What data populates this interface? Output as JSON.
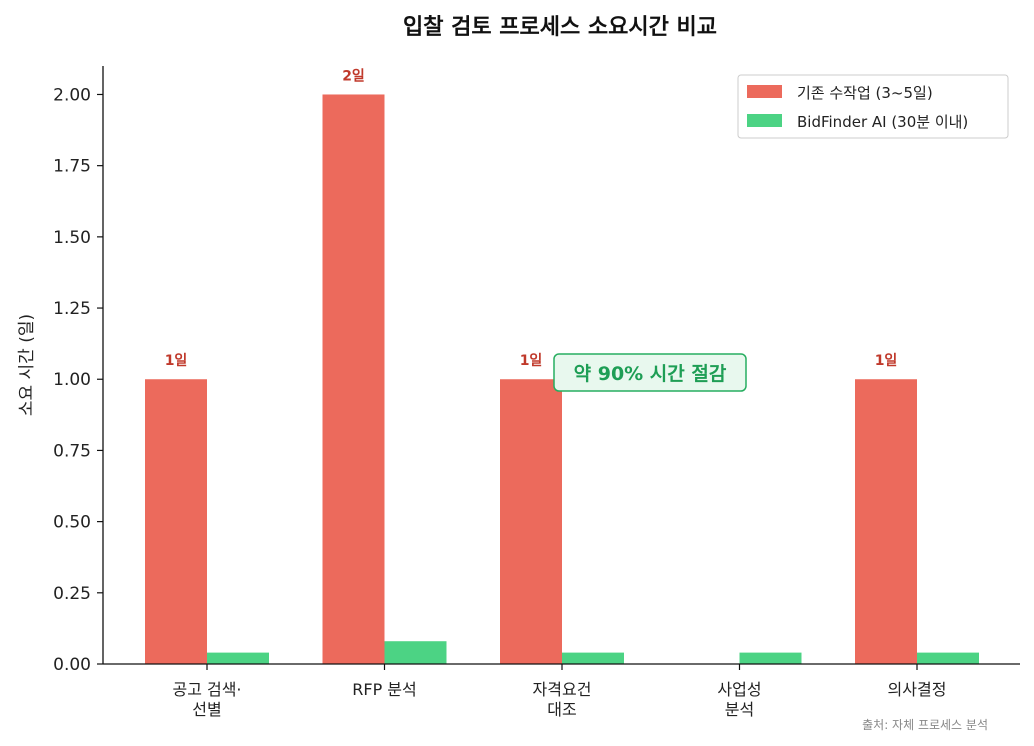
{
  "chart_data": {
    "type": "bar",
    "title": "입찰 검토 프로세스 소요시간 비교",
    "ylabel": "소요 시간 (일)",
    "xlabel": "",
    "ylim": [
      0,
      2.1
    ],
    "yticks": [
      "0.00",
      "0.25",
      "0.50",
      "0.75",
      "1.00",
      "1.25",
      "1.50",
      "1.75",
      "2.00"
    ],
    "categories": [
      [
        "공고 검색·",
        "선별"
      ],
      [
        "RFP 분석"
      ],
      [
        "자격요건",
        "대조"
      ],
      [
        "사업성",
        "분석"
      ],
      [
        "의사결정"
      ]
    ],
    "series": [
      {
        "name": "기존 수작업 (3~5일)",
        "color": "#ec6a5c",
        "values": [
          1,
          2,
          1,
          0,
          1
        ]
      },
      {
        "name": "BidFinder AI (30분 이내)",
        "color": "#4cd384",
        "values": [
          0.04,
          0.08,
          0.04,
          0.04,
          0.04
        ]
      }
    ],
    "data_labels": [
      "1일",
      "2일",
      "1일",
      "",
      "1일"
    ],
    "annotation": "약 90% 시간 절감",
    "legend": "top-right",
    "grid": false,
    "source": "출처: 자체 프로세스 분석"
  }
}
